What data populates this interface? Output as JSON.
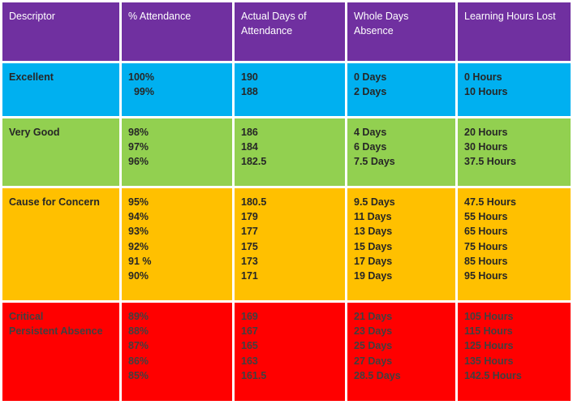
{
  "table": {
    "headers": [
      [
        "Descriptor"
      ],
      [
        "% Attendance"
      ],
      [
        "Actual Days of",
        "Attendance"
      ],
      [
        "Whole Days",
        "Absence"
      ],
      [
        "Learning Hours Lost"
      ]
    ],
    "rows": [
      {
        "descriptor": [
          "Excellent"
        ],
        "attendance": [
          "100%",
          "  99%"
        ],
        "actual_days": [
          "190",
          "188"
        ],
        "absence": [
          "0 Days",
          "2 Days"
        ],
        "hours_lost": [
          "0 Hours",
          "10 Hours"
        ]
      },
      {
        "descriptor": [
          "Very Good"
        ],
        "attendance": [
          "98%",
          "97%",
          "96%"
        ],
        "actual_days": [
          "186",
          "184",
          "182.5"
        ],
        "absence": [
          "4 Days",
          "6 Days",
          "7.5 Days"
        ],
        "hours_lost": [
          "20 Hours",
          "30 Hours",
          "37.5 Hours"
        ]
      },
      {
        "descriptor": [
          "Cause for Concern"
        ],
        "attendance": [
          "95%",
          "94%",
          "93%",
          "92%",
          "91 %",
          "90%"
        ],
        "actual_days": [
          "180.5",
          "179",
          "177",
          "175",
          "173",
          "171"
        ],
        "absence": [
          "9.5 Days",
          "11 Days",
          "13 Days",
          "15 Days",
          "17 Days",
          "19 Days"
        ],
        "hours_lost": [
          "47.5 Hours",
          "55 Hours",
          "65 Hours",
          "75 Hours",
          "85 Hours",
          "95 Hours"
        ]
      },
      {
        "descriptor": [
          "Critical",
          "Persistent Absence"
        ],
        "attendance": [
          "89%",
          "88%",
          "87%",
          "86%",
          "85%"
        ],
        "actual_days": [
          "169",
          "167",
          "165",
          "163",
          "161.5"
        ],
        "absence": [
          "21 Days",
          "23 Days",
          "25 Days",
          "27 Days",
          "28.5 Days"
        ],
        "hours_lost": [
          "105 Hours",
          "115 Hours",
          "125 Hours",
          "135 Hours",
          "142.5 Hours"
        ]
      }
    ]
  },
  "colors": {
    "header": "#7030a0",
    "excellent": "#00b0f0",
    "very_good": "#92d050",
    "cause_for_concern": "#ffc000",
    "critical": "#ff0000"
  }
}
